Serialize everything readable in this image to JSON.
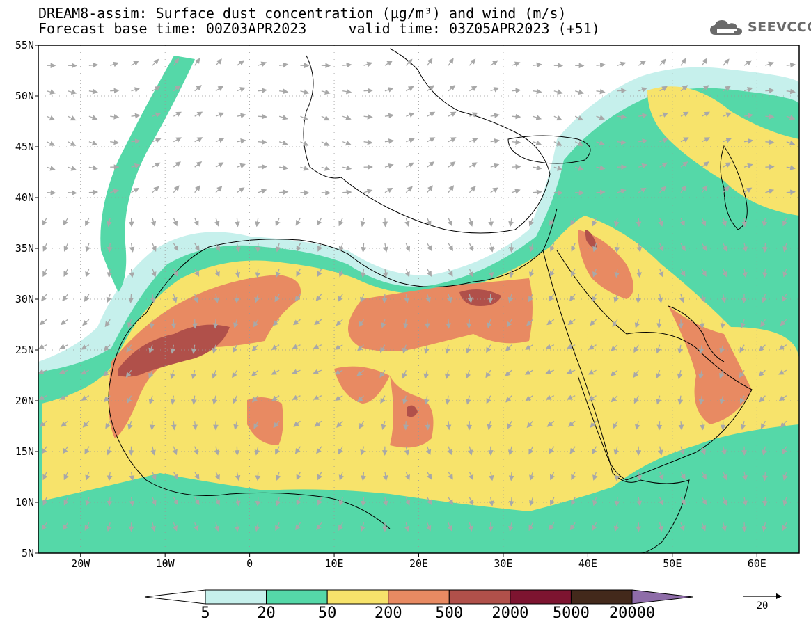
{
  "title": {
    "line1": "DREAM8-assim: Surface dust concentration (µg/m³) and wind (m/s)",
    "line2": "Forecast base time: 00Z03APR2023     valid time: 03Z05APR2023 (+51)"
  },
  "logo": {
    "text": "SEEVCCC",
    "icon": "cloud-icon"
  },
  "map": {
    "lon_range": [
      -25,
      65
    ],
    "lat_range": [
      5,
      55
    ],
    "lat_ticks": [
      {
        "value": 55,
        "label": "55N"
      },
      {
        "value": 50,
        "label": "50N"
      },
      {
        "value": 45,
        "label": "45N"
      },
      {
        "value": 40,
        "label": "40N"
      },
      {
        "value": 35,
        "label": "35N"
      },
      {
        "value": 30,
        "label": "30N"
      },
      {
        "value": 25,
        "label": "25N"
      },
      {
        "value": 20,
        "label": "20N"
      },
      {
        "value": 15,
        "label": "15N"
      },
      {
        "value": 10,
        "label": "10N"
      },
      {
        "value": 5,
        "label": "5N"
      }
    ],
    "lon_ticks": [
      {
        "value": -20,
        "label": "20W"
      },
      {
        "value": -10,
        "label": "10W"
      },
      {
        "value": 0,
        "label": "0"
      },
      {
        "value": 10,
        "label": "10E"
      },
      {
        "value": 20,
        "label": "20E"
      },
      {
        "value": 30,
        "label": "30E"
      },
      {
        "value": 40,
        "label": "40E"
      },
      {
        "value": 50,
        "label": "50E"
      },
      {
        "value": 60,
        "label": "60E"
      }
    ],
    "grid": true
  },
  "colorbar": {
    "levels": [
      "5",
      "20",
      "50",
      "200",
      "500",
      "2000",
      "5000",
      "20000"
    ],
    "colors": [
      "#ffffff",
      "#c6f0ec",
      "#55d8a8",
      "#f7e36b",
      "#e88a62",
      "#b0504a",
      "#7d1430",
      "#43291b",
      "#8e6ca8"
    ]
  },
  "wind_legend": {
    "label": "20",
    "speed": 20
  }
}
